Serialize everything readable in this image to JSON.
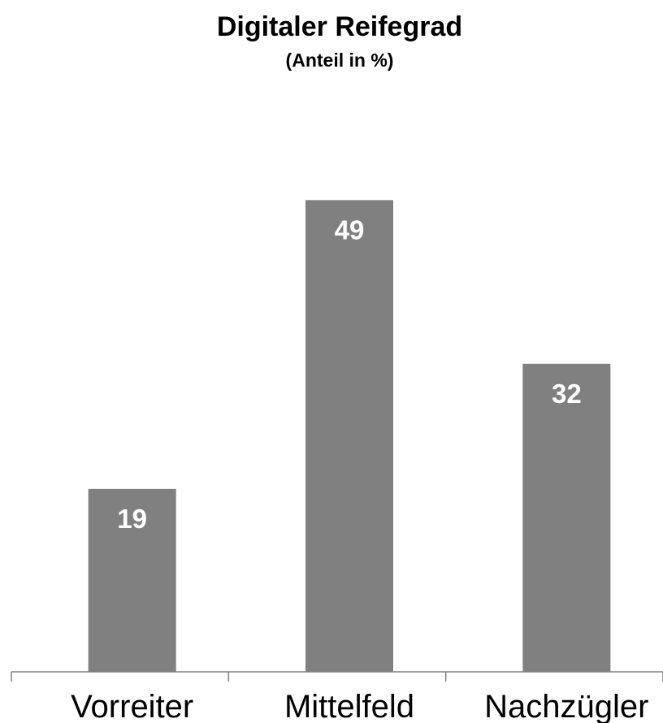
{
  "chart_data": {
    "type": "bar",
    "title": "Digitaler Reifegrad",
    "subtitle": "(Anteil in %)",
    "xlabel": "",
    "ylabel": "",
    "categories": [
      "Vorreiter",
      "Mittelfeld",
      "Nachzügler"
    ],
    "values": [
      19,
      49,
      32
    ],
    "data_labels": [
      "19",
      "49",
      "32"
    ],
    "ylim": [
      0,
      60
    ],
    "grid": false,
    "legend": "none",
    "colors": {
      "bar": "#808080",
      "axis": "#808080",
      "data_label": "#ffffff",
      "text": "#000000"
    }
  }
}
